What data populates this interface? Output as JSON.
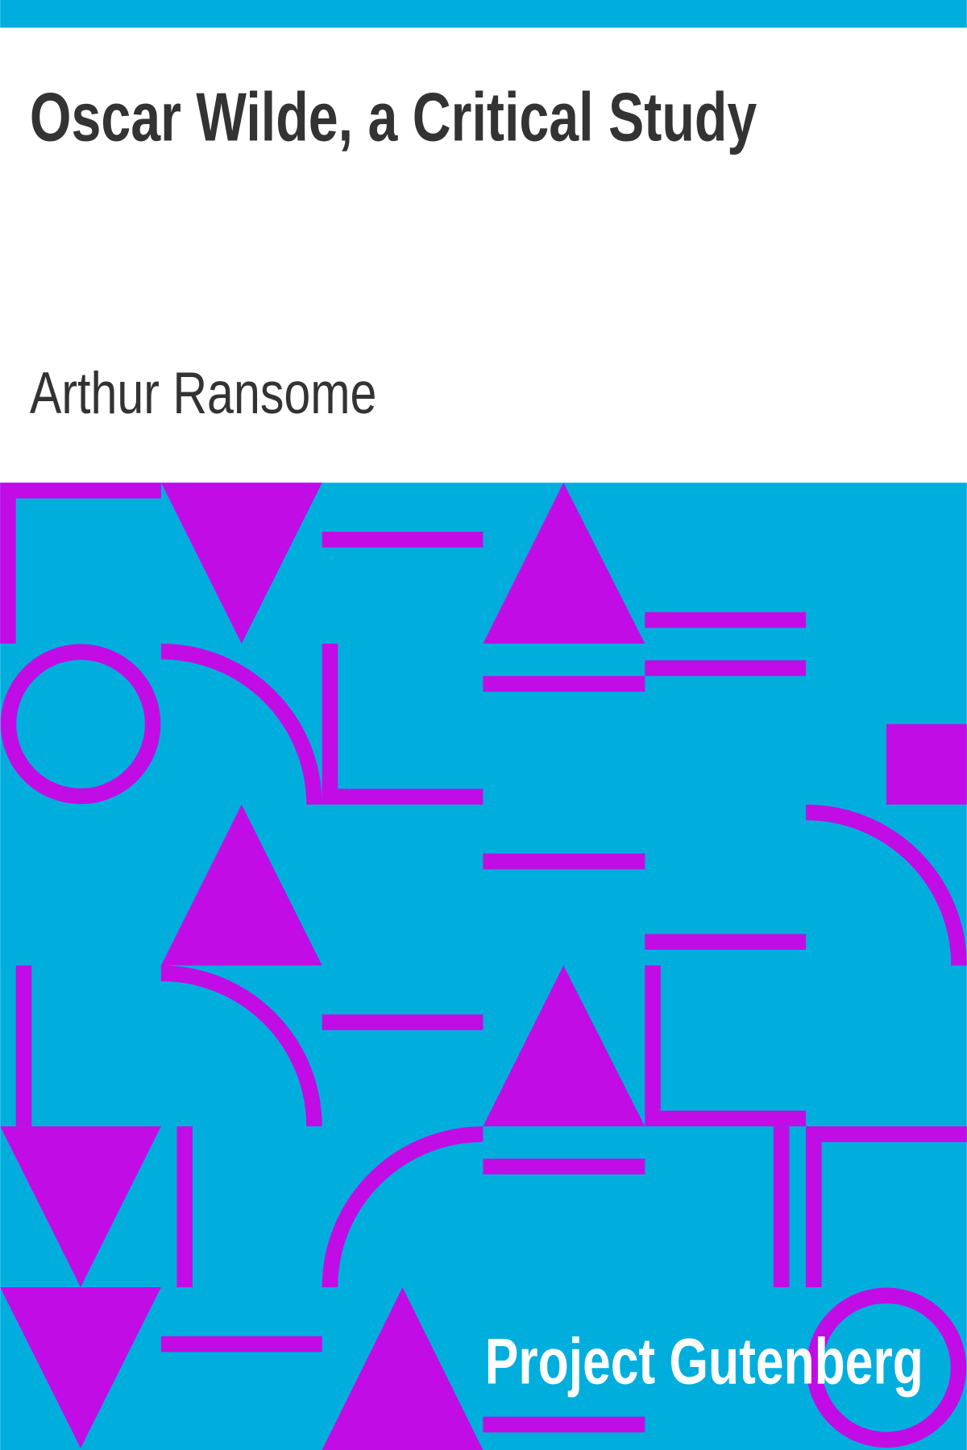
{
  "cover": {
    "title": "Oscar Wilde, a Critical Study",
    "author": "Arthur Ransome",
    "publisher": "Project Gutenberg"
  }
}
